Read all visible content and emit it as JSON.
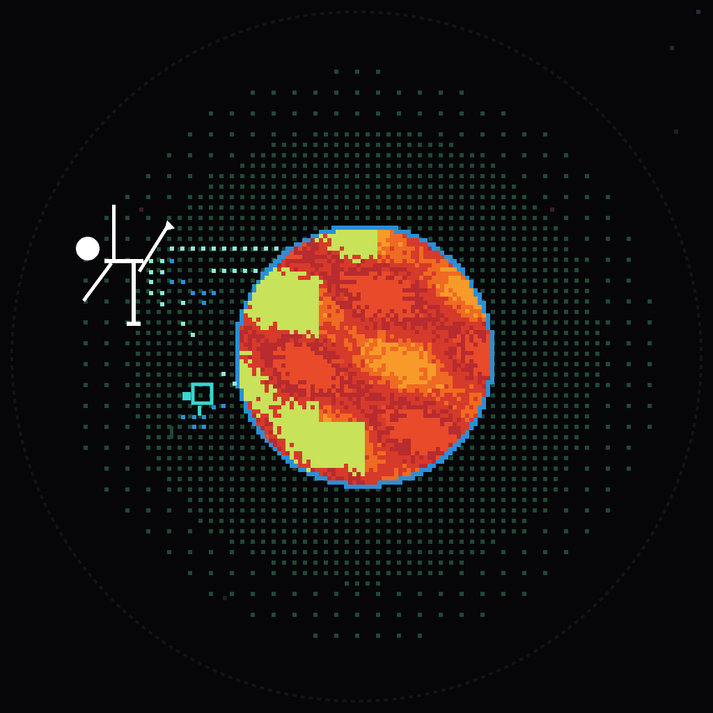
{
  "scene": {
    "background": "#060608",
    "orbit_ring_color": "#12141a",
    "halo_color": "#1e4a35"
  },
  "planet": {
    "palette": [
      "#d63a2a",
      "#b82b2e",
      "#ef6a22",
      "#f79a2a",
      "#c8e25a",
      "#e84a2a"
    ],
    "rim_color": "#2b8fd6"
  },
  "probe": {
    "body_color": "#ffffff",
    "beam_color": "#8fe8d6",
    "beam_dim_color": "#2b8fd6"
  },
  "moon": {
    "color": "#3ad6d0"
  }
}
